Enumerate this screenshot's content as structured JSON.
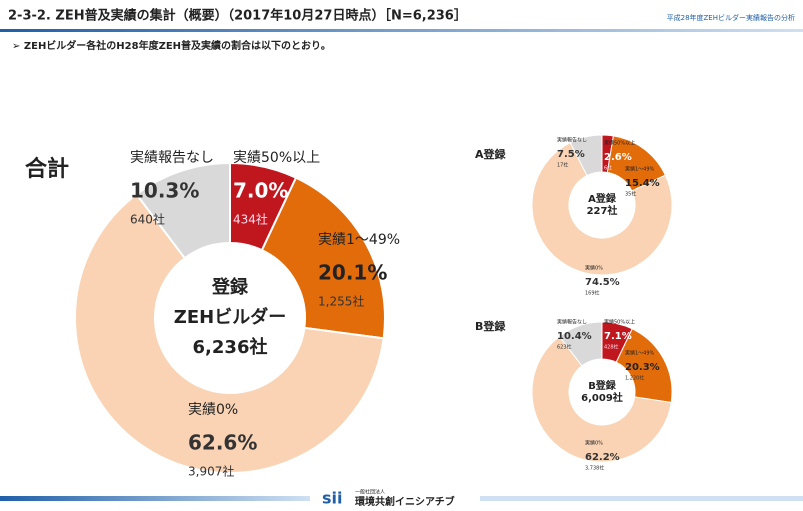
{
  "header": {
    "title": "2-3-2. ZEH普及実績の集計（概要）（2017年10月27日時点）［N=6,236］",
    "note": "平成28年度ZEHビルダー実績報告の分析",
    "subtitle": "➢ ZEHビルダー各社のH28年度ZEH普及実績の割合は以下のとおり。"
  },
  "footer": {
    "org_type": "一般社団法人",
    "org": "環境共創イニシアチブ",
    "logo": "sii"
  },
  "chart_data": [
    {
      "type": "pie",
      "title": "合計",
      "center_text": [
        "登録",
        "ZEHビルダー",
        "6,236社"
      ],
      "categories": [
        "実績50%以上",
        "実績1～49%",
        "実績0%",
        "実績報告なし"
      ],
      "values": [
        7.0,
        20.1,
        62.6,
        10.3
      ],
      "value_labels": [
        "7.0%",
        "20.1%",
        "62.6%",
        "10.3%"
      ],
      "counts": [
        434,
        1255,
        3907,
        640
      ],
      "count_labels": [
        "434社",
        "1,255社",
        "3,907社",
        "640社"
      ],
      "colors": [
        "#c0161e",
        "#e36c0a",
        "#f9d3b4",
        "#d9d9d9"
      ]
    },
    {
      "type": "pie",
      "title": "A登録",
      "center_text": [
        "A登録",
        "227社"
      ],
      "categories": [
        "実績50%以上",
        "実績1～49%",
        "実績0%",
        "実績報告なし"
      ],
      "values": [
        2.6,
        15.4,
        74.5,
        7.5
      ],
      "value_labels": [
        "2.6%",
        "15.4%",
        "74.5%",
        "7.5%"
      ],
      "counts": [
        6,
        35,
        169,
        17
      ],
      "count_labels": [
        "6社",
        "35社",
        "169社",
        "17社"
      ],
      "colors": [
        "#c0161e",
        "#e36c0a",
        "#f9d3b4",
        "#d9d9d9"
      ]
    },
    {
      "type": "pie",
      "title": "B登録",
      "center_text": [
        "B登録",
        "6,009社"
      ],
      "categories": [
        "実績50%以上",
        "実績1～49%",
        "実績0%",
        "実績報告なし"
      ],
      "values": [
        7.1,
        20.3,
        62.2,
        10.4
      ],
      "value_labels": [
        "7.1%",
        "20.3%",
        "62.2%",
        "10.4%"
      ],
      "counts": [
        428,
        1220,
        3738,
        623
      ],
      "count_labels": [
        "428社",
        "1,220社",
        "3,738社",
        "623社"
      ],
      "colors": [
        "#c0161e",
        "#e36c0a",
        "#f9d3b4",
        "#d9d9d9"
      ]
    }
  ]
}
